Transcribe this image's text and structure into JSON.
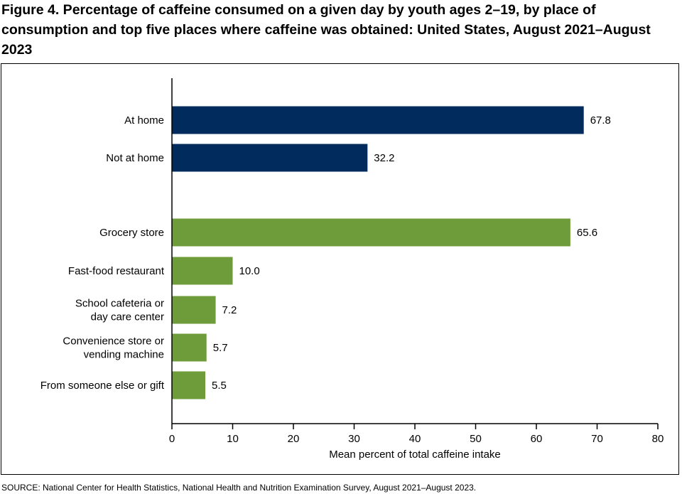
{
  "title": "Figure 4. Percentage of caffeine consumed on a given day by youth ages 2–19, by place of consumption and top five places where caffeine was obtained: United States, August 2021–August 2023",
  "source": "SOURCE: National Center for Health Statistics, National Health and Nutrition Examination Survey, August 2021–August 2023.",
  "chart_data": {
    "type": "bar",
    "orientation": "horizontal",
    "xlabel": "Mean percent of total caffeine intake",
    "xlim": [
      0,
      80
    ],
    "xticks": [
      "0",
      "10",
      "20",
      "30",
      "40",
      "50",
      "60",
      "70",
      "80"
    ],
    "grid": false,
    "groups": [
      {
        "color": "#002b5c",
        "bars": [
          {
            "label": [
              "At home"
            ],
            "value": 67.8,
            "value_label": "67.8"
          },
          {
            "label": [
              "Not at home"
            ],
            "value": 32.2,
            "value_label": "32.2"
          }
        ]
      },
      {
        "color": "#6f9c3a",
        "bars": [
          {
            "label": [
              "Grocery store"
            ],
            "value": 65.6,
            "value_label": "65.6"
          },
          {
            "label": [
              "Fast-food restaurant"
            ],
            "value": 10.0,
            "value_label": "10.0"
          },
          {
            "label": [
              "School cafeteria or",
              "day care center"
            ],
            "value": 7.2,
            "value_label": "7.2"
          },
          {
            "label": [
              "Convenience store or",
              "vending machine"
            ],
            "value": 5.7,
            "value_label": "5.7"
          },
          {
            "label": [
              "From someone else or gift"
            ],
            "value": 5.5,
            "value_label": "5.5"
          }
        ]
      }
    ]
  }
}
